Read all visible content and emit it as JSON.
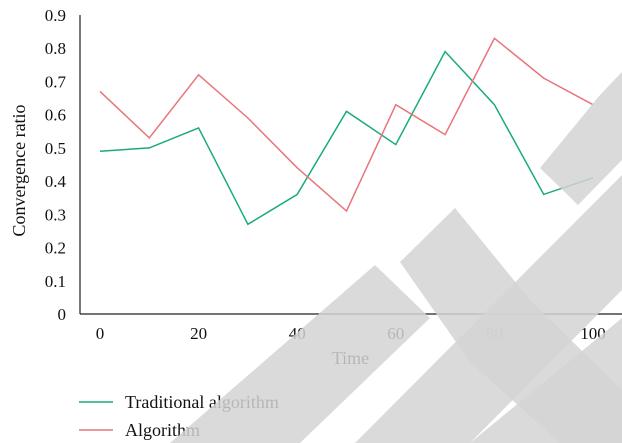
{
  "chart_data": {
    "type": "line",
    "xlabel": "Time",
    "ylabel": "Convergence ratio",
    "xlim": [
      0,
      100
    ],
    "ylim": [
      0,
      0.9
    ],
    "x_ticks": [
      0,
      20,
      40,
      60,
      80,
      100
    ],
    "y_ticks": [
      0,
      0.1,
      0.2,
      0.3,
      0.4,
      0.5,
      0.6,
      0.7,
      0.8,
      0.9
    ],
    "x_tick_labels": [
      "0",
      "20",
      "40",
      "60",
      "80",
      "100"
    ],
    "y_tick_labels": [
      "0",
      "0.1",
      "0.2",
      "0.3",
      "0.4",
      "0.5",
      "0.6",
      "0.7",
      "0.8",
      "0.9"
    ],
    "grid": false,
    "legend_position": "bottom-left",
    "x": [
      0,
      10,
      20,
      30,
      40,
      50,
      60,
      70,
      80,
      90,
      100
    ],
    "series": [
      {
        "name": "Traditional algorithm",
        "color": "#1aaa7e",
        "values": [
          0.49,
          0.5,
          0.56,
          0.27,
          0.36,
          0.61,
          0.51,
          0.79,
          0.63,
          0.36,
          0.41
        ]
      },
      {
        "name": "Algorithm",
        "color": "#e8747c",
        "values": [
          0.67,
          0.53,
          0.72,
          0.59,
          0.44,
          0.31,
          0.63,
          0.54,
          0.83,
          0.71,
          0.63
        ]
      }
    ]
  }
}
